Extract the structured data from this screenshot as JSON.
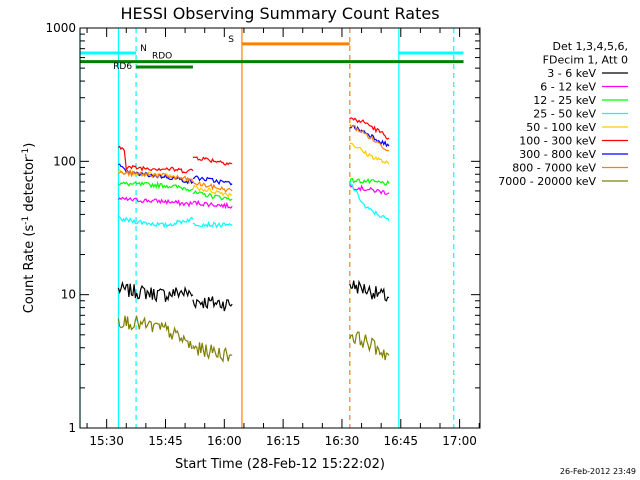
{
  "chart_data": {
    "type": "line",
    "title": "HESSI Observing Summary Count Rates",
    "xlabel": "Start Time (28-Feb-12 15:22:02)",
    "ylabel_main": "Count Rate (s",
    "ylabel_sup1": "-1",
    "ylabel_mid": " detector",
    "ylabel_sup2": "-1",
    "ylabel_end": ")",
    "yscale": "log",
    "ylim": [
      1,
      1000
    ],
    "xlim_minutes": [
      15.4,
      17.1
    ],
    "ytick_labels": [
      {
        "value": 1,
        "label": "1"
      },
      {
        "value": 10,
        "label": "10"
      },
      {
        "value": 100,
        "label": "100"
      },
      {
        "value": 1000,
        "label": "1000"
      }
    ],
    "xtick_labels": [
      {
        "min": 30,
        "label": "15:30"
      },
      {
        "min": 45,
        "label": "15:45"
      },
      {
        "min": 60,
        "label": "16:00"
      },
      {
        "min": 75,
        "label": "16:15"
      },
      {
        "min": 90,
        "label": "16:30"
      },
      {
        "min": 105,
        "label": "16:45"
      },
      {
        "min": 120,
        "label": "17:00"
      }
    ],
    "legend_header": [
      "Det 1,3,4,5,6,",
      "FDecim 1, Att 0"
    ],
    "legend_position": "right",
    "series": [
      {
        "name": "3 - 6 keV",
        "color": "#000000",
        "segments": [
          [
            [
              33,
              11
            ],
            [
              45,
              10
            ],
            [
              49,
              10.5
            ],
            [
              52,
              10
            ]
          ],
          [
            [
              52,
              9
            ],
            [
              62,
              8.5
            ]
          ],
          [
            [
              92,
              12
            ],
            [
              96,
              11
            ],
            [
              102,
              9.5
            ]
          ]
        ]
      },
      {
        "name": "6 - 12 keV",
        "color": "#ff00ff",
        "segments": [
          [
            [
              33,
              52
            ],
            [
              45,
              50
            ],
            [
              50,
              48
            ],
            [
              52,
              48
            ]
          ],
          [
            [
              52,
              49
            ],
            [
              62,
              46
            ]
          ],
          [
            [
              92,
              65
            ],
            [
              96,
              62
            ],
            [
              102,
              58
            ]
          ]
        ]
      },
      {
        "name": "12 - 25 keV",
        "color": "#00ff00",
        "segments": [
          [
            [
              33,
              68
            ],
            [
              45,
              66
            ],
            [
              50,
              63
            ],
            [
              52,
              62
            ]
          ],
          [
            [
              52,
              58
            ],
            [
              62,
              52
            ]
          ],
          [
            [
              92,
              72
            ],
            [
              96,
              71
            ],
            [
              102,
              68
            ]
          ]
        ]
      },
      {
        "name": "25 - 50 keV",
        "color": "#00ffff",
        "segments": [
          [
            [
              33,
              37
            ],
            [
              45,
              33
            ],
            [
              50,
              36
            ],
            [
              52,
              37
            ]
          ],
          [
            [
              52,
              34
            ],
            [
              62,
              33
            ]
          ],
          [
            [
              92,
              70
            ],
            [
              96,
              45
            ],
            [
              102,
              36
            ]
          ]
        ]
      },
      {
        "name": "50 - 100 keV",
        "color": "#ffcc00",
        "segments": [
          [
            [
              33,
              84
            ],
            [
              45,
              78
            ],
            [
              50,
              72
            ],
            [
              52,
              70
            ]
          ],
          [
            [
              52,
              64
            ],
            [
              62,
              56
            ]
          ],
          [
            [
              92,
              140
            ],
            [
              96,
              115
            ],
            [
              102,
              95
            ]
          ]
        ]
      },
      {
        "name": "100 - 300 keV",
        "color": "#ff0000",
        "segments": [
          [
            [
              33,
              125
            ],
            [
              34.5,
              125
            ],
            [
              35,
              90
            ],
            [
              45,
              88
            ],
            [
              50,
              85
            ],
            [
              52,
              85
            ]
          ],
          [
            [
              52,
              108
            ],
            [
              62,
              96
            ]
          ],
          [
            [
              92,
              210
            ],
            [
              96,
              195
            ],
            [
              102,
              150
            ]
          ]
        ]
      },
      {
        "name": "300 - 800 keV",
        "color": "#0000ff",
        "segments": [
          [
            [
              33,
              95
            ],
            [
              35,
              82
            ],
            [
              45,
              77
            ],
            [
              50,
              72
            ],
            [
              52,
              70
            ]
          ],
          [
            [
              52,
              76
            ],
            [
              62,
              68
            ]
          ],
          [
            [
              92,
              185
            ],
            [
              96,
              165
            ],
            [
              102,
              130
            ]
          ]
        ]
      },
      {
        "name": "800 - 7000 keV",
        "color": "#ff8000",
        "segments": [
          [
            [
              33,
              82
            ],
            [
              45,
              78
            ],
            [
              50,
              74
            ],
            [
              52,
              72
            ]
          ],
          [
            [
              52,
              69
            ],
            [
              62,
              60
            ]
          ],
          [
            [
              92,
              190
            ],
            [
              96,
              160
            ],
            [
              102,
              120
            ]
          ]
        ]
      },
      {
        "name": "7000 - 20000 keV",
        "color": "#808000",
        "segments": [
          [
            [
              33,
              6.5
            ],
            [
              45,
              5.5
            ],
            [
              50,
              4.5
            ],
            [
              52,
              4
            ]
          ],
          [
            [
              52,
              4
            ],
            [
              62,
              3.5
            ]
          ],
          [
            [
              92,
              5
            ],
            [
              96,
              4.5
            ],
            [
              102,
              3.5
            ]
          ]
        ]
      }
    ],
    "vertical_markers": [
      {
        "min": 23.2,
        "color": "#00ffff",
        "style": "solid"
      },
      {
        "min": 33,
        "color": "#00ffff",
        "style": "solid"
      },
      {
        "min": 37.5,
        "color": "#00ffff",
        "style": "dashed"
      },
      {
        "min": 64.5,
        "color": "#ff8000",
        "style": "solid"
      },
      {
        "min": 92,
        "color": "#ff8000",
        "style": "dashed"
      },
      {
        "min": 104.5,
        "color": "#00ffff",
        "style": "solid"
      },
      {
        "min": 118.5,
        "color": "#00ffff",
        "style": "dashed"
      }
    ],
    "state_bars": [
      {
        "label": "N",
        "color": "#00ffff",
        "segments": [
          [
            23.2,
            37.5
          ],
          [
            104.5,
            121
          ]
        ],
        "value": 650
      },
      {
        "label": "S",
        "color": "#ff8000",
        "segments": [
          [
            64.5,
            92
          ]
        ],
        "value": 760
      },
      {
        "label": "RDO",
        "color": "#008000",
        "segments": [
          [
            23.2,
            121
          ]
        ],
        "value": 560
      },
      {
        "label": "RD6",
        "color": "#008000",
        "segments": [
          [
            37.5,
            52
          ]
        ],
        "value": 510
      }
    ],
    "grid": false
  },
  "timestamp": "26-Feb-2012 23:49"
}
